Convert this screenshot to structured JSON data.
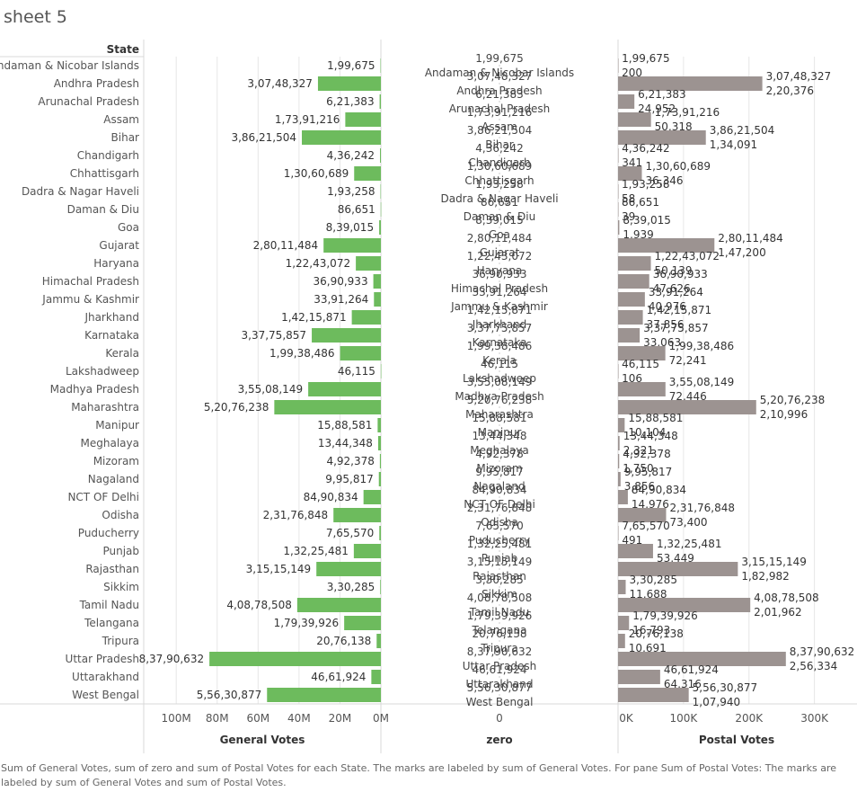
{
  "title": "sheet 5",
  "caption": "Sum of General Votes, sum of zero and sum of Postal Votes for each State.  The marks are labeled by sum of General Votes.  For pane Sum of Postal Votes:  The marks are labeled by sum of General Votes and sum of Postal Votes.",
  "colors": {
    "general": "#6dbb5d",
    "postal": "#9c9391",
    "grid": "#e6e6e6",
    "text": "#555555"
  },
  "chart_data": {
    "type": "bar",
    "row_header": "State",
    "categories": [
      "Andaman & Nicobar Islands",
      "Andhra Pradesh",
      "Arunachal Pradesh",
      "Assam",
      "Bihar",
      "Chandigarh",
      "Chhattisgarh",
      "Dadra & Nagar Haveli",
      "Daman & Diu",
      "Goa",
      "Gujarat",
      "Haryana",
      "Himachal Pradesh",
      "Jammu & Kashmir",
      "Jharkhand",
      "Karnataka",
      "Kerala",
      "Lakshadweep",
      "Madhya Pradesh",
      "Maharashtra",
      "Manipur",
      "Meghalaya",
      "Mizoram",
      "Nagaland",
      "NCT OF Delhi",
      "Odisha",
      "Puducherry",
      "Punjab",
      "Rajasthan",
      "Sikkim",
      "Tamil Nadu",
      "Telangana",
      "Tripura",
      "Uttar Pradesh",
      "Uttarakhand",
      "West Bengal"
    ],
    "series": [
      {
        "name": "General Votes",
        "values": [
          199675,
          30748327,
          621383,
          17391216,
          38621504,
          436242,
          13060689,
          193258,
          86651,
          839015,
          28011484,
          12243072,
          3690933,
          3391264,
          14215871,
          33775857,
          19938486,
          46115,
          35508149,
          52076238,
          1588581,
          1344348,
          492378,
          995817,
          8490834,
          23176848,
          765570,
          13225481,
          31515149,
          330285,
          40878508,
          17939926,
          2076138,
          83790632,
          4661924,
          55630877
        ],
        "labels": [
          "1,99,675",
          "3,07,48,327",
          "6,21,383",
          "1,73,91,216",
          "3,86,21,504",
          "4,36,242",
          "1,30,60,689",
          "1,93,258",
          "86,651",
          "8,39,015",
          "2,80,11,484",
          "1,22,43,072",
          "36,90,933",
          "33,91,264",
          "1,42,15,871",
          "3,37,75,857",
          "1,99,38,486",
          "46,115",
          "3,55,08,149",
          "5,20,76,238",
          "15,88,581",
          "13,44,348",
          "4,92,378",
          "9,95,817",
          "84,90,834",
          "2,31,76,848",
          "7,65,570",
          "1,32,25,481",
          "3,15,15,149",
          "3,30,285",
          "4,08,78,508",
          "1,79,39,926",
          "20,76,138",
          "8,37,90,632",
          "46,61,924",
          "5,56,30,877"
        ]
      },
      {
        "name": "zero",
        "values": [
          0,
          0,
          0,
          0,
          0,
          0,
          0,
          0,
          0,
          0,
          0,
          0,
          0,
          0,
          0,
          0,
          0,
          0,
          0,
          0,
          0,
          0,
          0,
          0,
          0,
          0,
          0,
          0,
          0,
          0,
          0,
          0,
          0,
          0,
          0,
          0
        ]
      },
      {
        "name": "Postal Votes",
        "values": [
          200,
          220376,
          24952,
          50318,
          134091,
          341,
          36346,
          58,
          39,
          1939,
          147200,
          50139,
          47626,
          40976,
          37856,
          33063,
          72241,
          106,
          72446,
          210996,
          10104,
          2321,
          1750,
          3856,
          14976,
          73400,
          491,
          53449,
          182982,
          11688,
          201962,
          16793,
          10691,
          256334,
          64316,
          107940
        ],
        "labels": [
          "200",
          "2,20,376",
          "24,952",
          "50,318",
          "1,34,091",
          "341",
          "36,346",
          "58",
          "39",
          "1,939",
          "1,47,200",
          "50,139",
          "47,626",
          "40,976",
          "37,856",
          "33,063",
          "72,241",
          "106",
          "72,446",
          "2,10,996",
          "10,104",
          "2,321",
          "1,750",
          "3,856",
          "14,976",
          "73,400",
          "491",
          "53,449",
          "1,82,982",
          "11,688",
          "2,01,962",
          "16,793",
          "10,691",
          "2,56,334",
          "64,316",
          "1,07,940"
        ]
      }
    ],
    "axes": [
      {
        "title": "General Votes",
        "reversed": true,
        "ticks": [
          100000000,
          80000000,
          60000000,
          40000000,
          20000000,
          0
        ],
        "tick_labels": [
          "100M",
          "80M",
          "60M",
          "40M",
          "20M",
          "0M"
        ],
        "range": [
          0,
          115000000
        ]
      },
      {
        "title": "zero",
        "ticks": [
          0
        ],
        "tick_labels": [
          "0"
        ],
        "range": [
          -1,
          1
        ]
      },
      {
        "title": "Postal Votes",
        "ticks": [
          0,
          100000,
          200000,
          300000
        ],
        "tick_labels": [
          "0K",
          "100K",
          "200K",
          "300K"
        ],
        "range": [
          0,
          365000
        ]
      }
    ],
    "grid": true,
    "legend": "none"
  }
}
